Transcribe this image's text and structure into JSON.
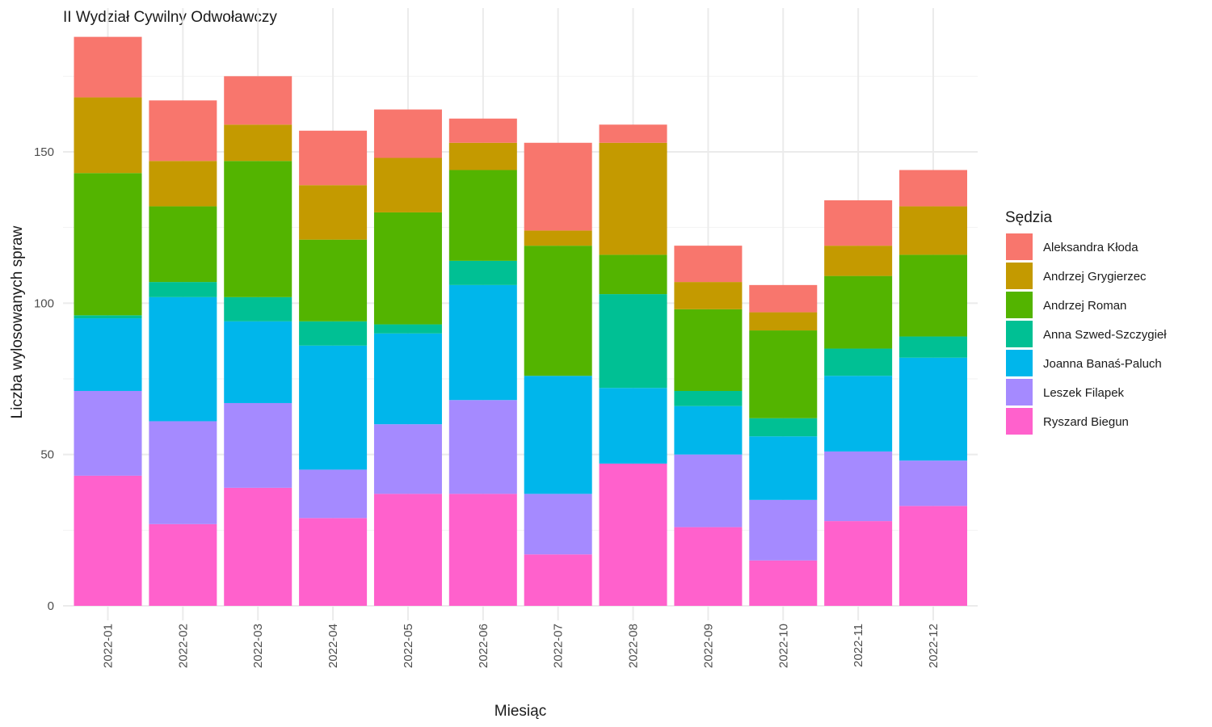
{
  "chart_data": {
    "type": "bar",
    "stacked": true,
    "title": "II Wydział Cywilny Odwoławczy",
    "xlabel": "Miesiąc",
    "ylabel": "Liczba wylosowanych spraw",
    "ylim": [
      0,
      190
    ],
    "y_ticks": [
      0,
      50,
      100,
      150
    ],
    "y_tick_labels": [
      "0",
      "50",
      "100",
      "150"
    ],
    "grid": true,
    "legend_position": "right",
    "legend_title": "Sędzia",
    "categories": [
      "2022-01",
      "2022-02",
      "2022-03",
      "2022-04",
      "2022-05",
      "2022-06",
      "2022-07",
      "2022-08",
      "2022-09",
      "2022-10",
      "2022-11",
      "2022-12"
    ],
    "series": [
      {
        "name": "Ryszard Biegun",
        "color": "#FF61CC",
        "values": [
          43,
          27,
          39,
          29,
          37,
          37,
          17,
          47,
          26,
          15,
          28,
          33
        ]
      },
      {
        "name": "Leszek Filapek",
        "color": "#A58AFF",
        "values": [
          28,
          34,
          28,
          16,
          23,
          31,
          20,
          0,
          24,
          20,
          23,
          15
        ]
      },
      {
        "name": "Joanna Banaś-Paluch",
        "color": "#00B6EB",
        "values": [
          24,
          41,
          27,
          41,
          30,
          38,
          39,
          25,
          16,
          21,
          25,
          34
        ]
      },
      {
        "name": "Anna Szwed-Szczygieł",
        "color": "#00C094",
        "values": [
          1,
          5,
          8,
          8,
          3,
          8,
          0,
          31,
          5,
          6,
          9,
          7
        ]
      },
      {
        "name": "Andrzej Roman",
        "color": "#53B400",
        "values": [
          47,
          25,
          45,
          27,
          37,
          30,
          43,
          13,
          27,
          29,
          24,
          27
        ]
      },
      {
        "name": "Andrzej Grygierzec",
        "color": "#C49A00",
        "values": [
          25,
          15,
          12,
          18,
          18,
          9,
          5,
          37,
          9,
          6,
          10,
          16
        ]
      },
      {
        "name": "Aleksandra Kłoda",
        "color": "#F8766D",
        "values": [
          20,
          20,
          16,
          18,
          16,
          8,
          29,
          6,
          12,
          9,
          15,
          12
        ]
      }
    ],
    "legend_order": [
      "Aleksandra Kłoda",
      "Andrzej Grygierzec",
      "Andrzej Roman",
      "Anna Szwed-Szczygieł",
      "Joanna Banaś-Paluch",
      "Leszek Filapek",
      "Ryszard Biegun"
    ]
  }
}
